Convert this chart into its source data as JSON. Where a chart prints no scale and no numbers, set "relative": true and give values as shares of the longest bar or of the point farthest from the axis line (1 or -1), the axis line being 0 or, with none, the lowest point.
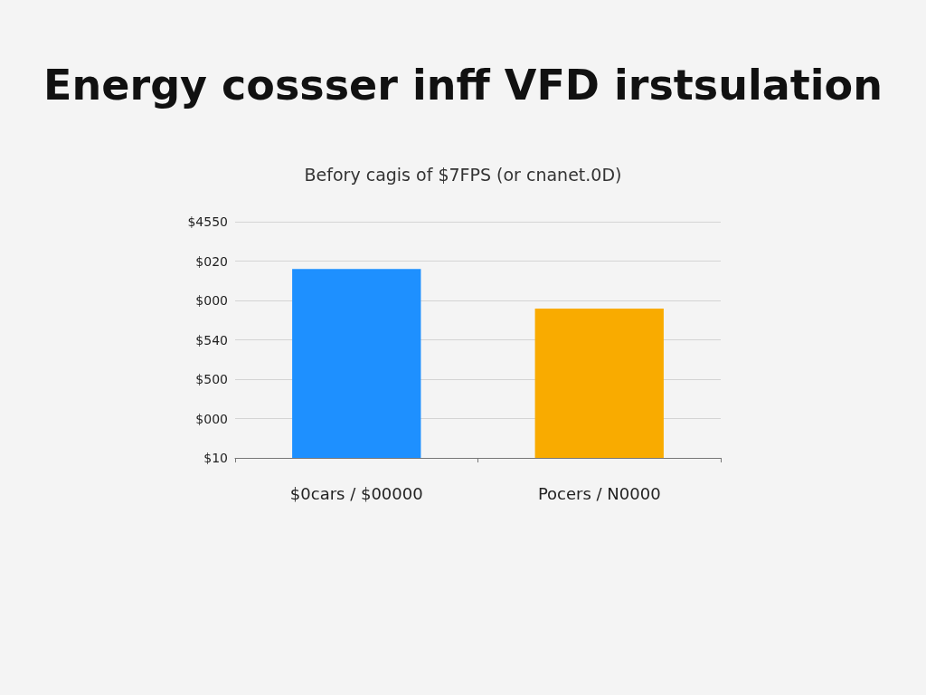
{
  "chart_data": {
    "type": "bar",
    "title": "Energy cossser inff VFD irstsulation",
    "subtitle": "Befory cagis of $7FPS (or cnanet.0D)",
    "categories": [
      "$0cars / $00000",
      "Pocers / N0000"
    ],
    "values": [
      1,
      0.79
    ],
    "colors": [
      "#1e90ff",
      "#f9ab00"
    ],
    "relative": true,
    "annotations": [
      "$4550",
      "$020",
      "$000",
      "$540",
      "$500",
      "$000",
      "$10"
    ],
    "grid": true
  }
}
